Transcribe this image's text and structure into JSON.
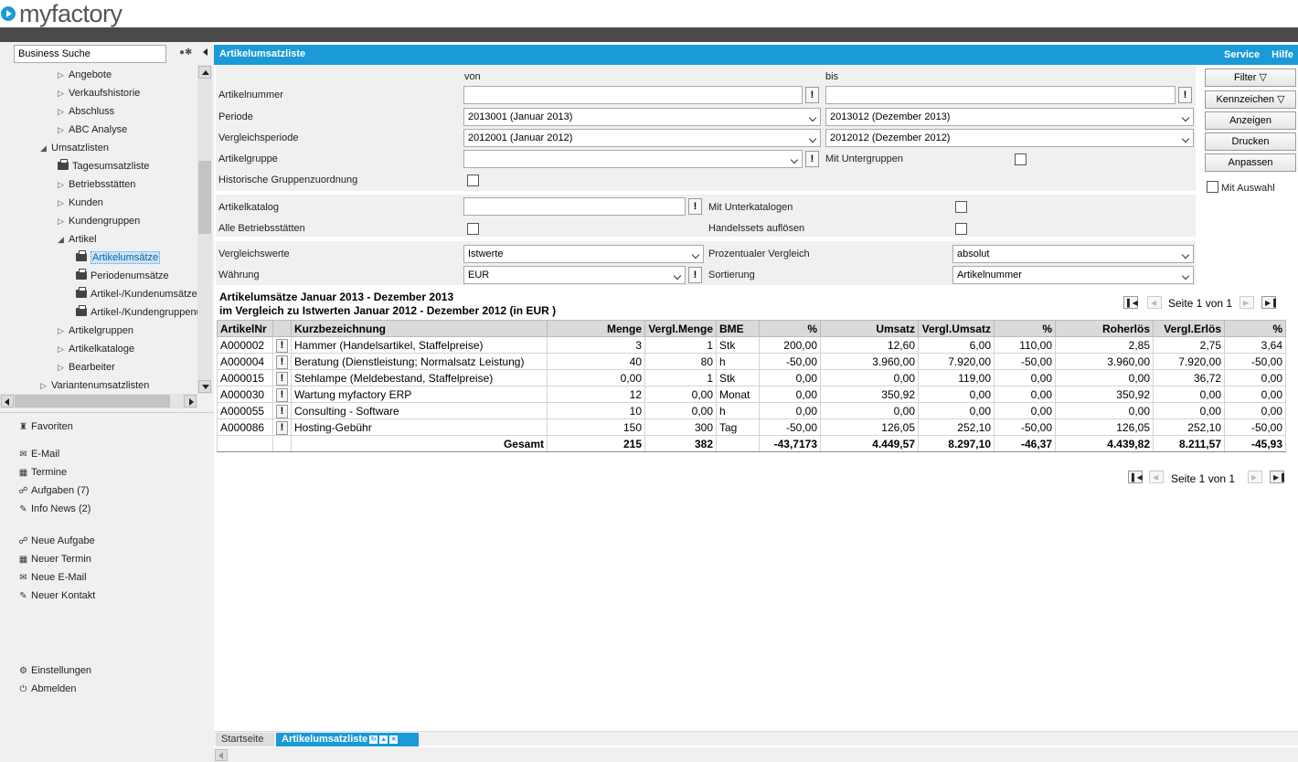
{
  "brand": {
    "logo_text": "myfactory"
  },
  "sidebar": {
    "search_value": "Business Suche",
    "tree": [
      {
        "label": "Angebote",
        "icon": "triangle-right-icon"
      },
      {
        "label": "Verkaufshistorie",
        "icon": "triangle-right-icon"
      },
      {
        "label": "Abschluss",
        "icon": "triangle-right-icon"
      },
      {
        "label": "ABC Analyse",
        "icon": "triangle-right-icon"
      },
      {
        "label": "Umsatzlisten",
        "icon": "triangle-down-icon"
      },
      {
        "label": "Tagesumsatzliste",
        "icon": "printer-icon"
      },
      {
        "label": "Betriebsstätten",
        "icon": "triangle-right-icon"
      },
      {
        "label": "Kunden",
        "icon": "triangle-right-icon"
      },
      {
        "label": "Kundengruppen",
        "icon": "triangle-right-icon"
      },
      {
        "label": "Artikel",
        "icon": "triangle-down-icon"
      },
      {
        "label": "Artikelumsätze",
        "icon": "printer-icon"
      },
      {
        "label": "Periodenumsätze",
        "icon": "printer-icon"
      },
      {
        "label": "Artikel-/Kundenumsätze",
        "icon": "printer-icon"
      },
      {
        "label": "Artikel-/Kundengruppenu",
        "icon": "printer-icon"
      },
      {
        "label": "Artikelgruppen",
        "icon": "triangle-right-icon"
      },
      {
        "label": "Artikelkataloge",
        "icon": "triangle-right-icon"
      },
      {
        "label": "Bearbeiter",
        "icon": "triangle-right-icon"
      },
      {
        "label": "Variantenumsatzlisten",
        "icon": "triangle-right-icon"
      }
    ],
    "favoriten": "Favoriten",
    "links1": [
      {
        "label": "E-Mail",
        "icon": "mail-icon"
      },
      {
        "label": "Termine",
        "icon": "calendar-icon"
      },
      {
        "label": "Aufgaben (7)",
        "icon": "tasks-icon"
      },
      {
        "label": "Info News (2)",
        "icon": "pin-icon"
      }
    ],
    "links2": [
      {
        "label": "Neue Aufgabe",
        "icon": "tasks-icon"
      },
      {
        "label": "Neuer Termin",
        "icon": "calendar-icon"
      },
      {
        "label": "Neue E-Mail",
        "icon": "mail-icon"
      },
      {
        "label": "Neuer Kontakt",
        "icon": "pin-icon"
      }
    ],
    "links3": [
      {
        "label": "Einstellungen",
        "icon": "gear-icon"
      },
      {
        "label": "Abmelden",
        "icon": "power-icon"
      }
    ]
  },
  "header": {
    "title": "Artikelumsatzliste",
    "service": "Service",
    "hilfe": "Hilfe"
  },
  "form": {
    "von": "von",
    "bis": "bis",
    "artikelnummer_label": "Artikelnummer",
    "periode_label": "Periode",
    "periode_von": "2013001 (Januar 2013)",
    "periode_bis": "2013012 (Dezember 2013)",
    "vergleichsperiode_label": "Vergleichsperiode",
    "vergleich_von": "2012001 (Januar 2012)",
    "vergleich_bis": "2012012 (Dezember 2012)",
    "artikelgruppe_label": "Artikelgruppe",
    "mit_untergruppen": "Mit Untergruppen",
    "historische_label": "Historische Gruppenzuordnung",
    "artikelkatalog_label": "Artikelkatalog",
    "mit_unterkatalogen": "Mit Unterkatalogen",
    "alle_betriebsstaetten": "Alle Betriebsstätten",
    "handelssets": "Handelssets auflösen",
    "vergleichswerte_label": "Vergleichswerte",
    "vergleichswerte_value": "Istwerte",
    "prozentualer_label": "Prozentualer Vergleich",
    "prozentualer_value": "absolut",
    "waehrung_label": "Währung",
    "waehrung_value": "EUR",
    "sortierung_label": "Sortierung",
    "sortierung_value": "Artikelnummer"
  },
  "buttons": {
    "filter": "Filter",
    "kennzeichen": "Kennzeichen",
    "anzeigen": "Anzeigen",
    "drucken": "Drucken",
    "anpassen": "Anpassen",
    "mit_auswahl": "Mit Auswahl"
  },
  "report": {
    "title1": "Artikelumsätze Januar 2013 - Dezember 2013",
    "title2": "im Vergleich zu Istwerten Januar 2012 - Dezember 2012 (in EUR )",
    "pager_text": "Seite 1 von 1",
    "columns": [
      "ArtikelNr",
      "Kurzbezeichnung",
      "Menge",
      "Vergl.Menge",
      "BME",
      "%",
      "Umsatz",
      "Vergl.Umsatz",
      "%",
      "Roherlös",
      "Vergl.Erlös",
      "%"
    ],
    "rows": [
      [
        "A000002",
        "Hammer (Handelsartikel, Staffelpreise)",
        "3",
        "1",
        "Stk",
        "200,00",
        "12,60",
        "6,00",
        "110,00",
        "2,85",
        "2,75",
        "3,64"
      ],
      [
        "A000004",
        "Beratung (Dienstleistung; Normalsatz Leistung)",
        "40",
        "80",
        "h",
        "-50,00",
        "3.960,00",
        "7.920,00",
        "-50,00",
        "3.960,00",
        "7.920,00",
        "-50,00"
      ],
      [
        "A000015",
        "Stehlampe (Meldebestand, Staffelpreise)",
        "0,00",
        "1",
        "Stk",
        "0,00",
        "0,00",
        "119,00",
        "0,00",
        "0,00",
        "36,72",
        "0,00"
      ],
      [
        "A000030",
        "Wartung myfactory ERP",
        "12",
        "0,00",
        "Monat",
        "0,00",
        "350,92",
        "0,00",
        "0,00",
        "350,92",
        "0,00",
        "0,00"
      ],
      [
        "A000055",
        "Consulting - Software",
        "10",
        "0,00",
        "h",
        "0,00",
        "0,00",
        "0,00",
        "0,00",
        "0,00",
        "0,00",
        "0,00"
      ],
      [
        "A000086",
        "Hosting-Gebühr",
        "150",
        "300",
        "Tag",
        "-50,00",
        "126,05",
        "252,10",
        "-50,00",
        "126,05",
        "252,10",
        "-50,00"
      ]
    ],
    "total": [
      "Gesamt",
      "215",
      "382",
      "",
      "-43,7173",
      "4.449,57",
      "8.297,10",
      "-46,37",
      "4.439,82",
      "8.211,57",
      "-45,93"
    ]
  },
  "tabs": {
    "startseite": "Startseite",
    "active": "Artikelumsatzliste"
  }
}
